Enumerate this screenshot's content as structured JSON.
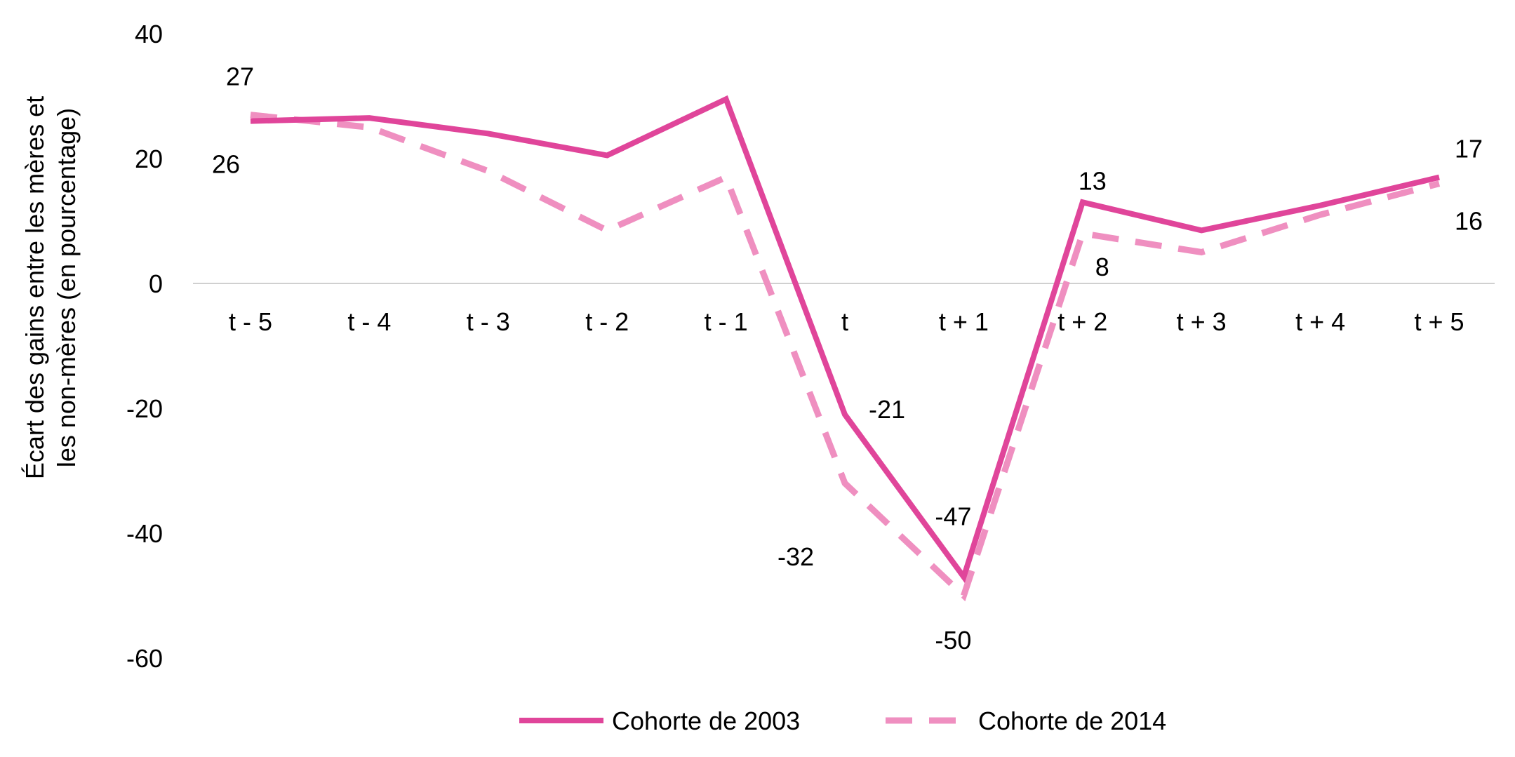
{
  "chart_data": {
    "type": "line",
    "categories": [
      "t - 5",
      "t - 4",
      "t - 3",
      "t - 2",
      "t - 1",
      "t",
      "t + 1",
      "t + 2",
      "t + 3",
      "t + 4",
      "t + 5"
    ],
    "series": [
      {
        "name": "Cohorte de 2003",
        "values": [
          26,
          26.5,
          24,
          20.5,
          29.5,
          -21,
          -47,
          13,
          8.5,
          12.5,
          17
        ],
        "color": "#e0459a",
        "style": "solid"
      },
      {
        "name": "Cohorte de 2014",
        "values": [
          27,
          25,
          18,
          8.5,
          17,
          -32,
          -50,
          8,
          5,
          11,
          16
        ],
        "color": "#ef8fc0",
        "style": "dashed"
      }
    ],
    "ylabel_lines": [
      "Écart des gains entre les mères et",
      "les non-mères (en pourcentage)"
    ],
    "ylim": [
      -60,
      40
    ],
    "yticks": [
      40,
      20,
      0,
      -20,
      -40,
      -60
    ],
    "ytick_labels": [
      "40",
      "20",
      "0",
      "-20",
      "-40",
      "-60"
    ],
    "data_labels": [
      {
        "text": "27",
        "series": 1,
        "index": 0
      },
      {
        "text": "26",
        "series": 0,
        "index": 0
      },
      {
        "text": "-21",
        "series": 0,
        "index": 5
      },
      {
        "text": "-32",
        "series": 1,
        "index": 5
      },
      {
        "text": "-47",
        "series": 0,
        "index": 6
      },
      {
        "text": "-50",
        "series": 1,
        "index": 6
      },
      {
        "text": "13",
        "series": 0,
        "index": 7
      },
      {
        "text": "8",
        "series": 1,
        "index": 7
      },
      {
        "text": "17",
        "series": 0,
        "index": 10
      },
      {
        "text": "16",
        "series": 1,
        "index": 10
      }
    ],
    "legend_position": "bottom",
    "grid": false
  }
}
